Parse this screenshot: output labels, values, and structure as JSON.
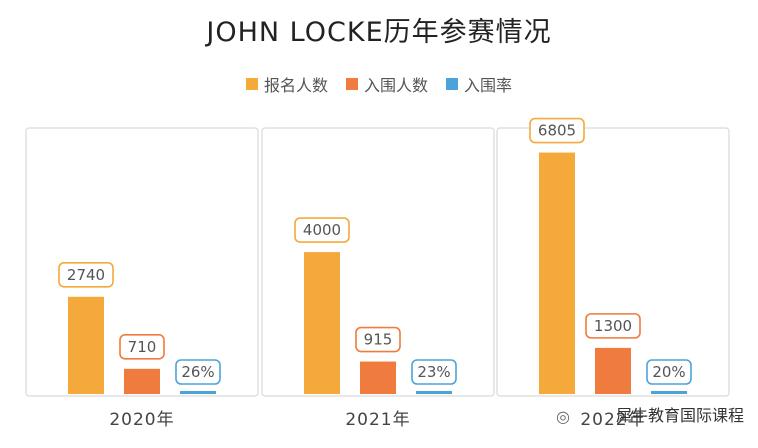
{
  "chart_data": {
    "type": "bar",
    "title": "JOHN LOCKE历年参赛情况",
    "categories": [
      "2020年",
      "2021年",
      "2022年"
    ],
    "series": [
      {
        "name": "报名人数",
        "values": [
          2740,
          4000,
          6805
        ],
        "labels": [
          "2740",
          "4000",
          "6805"
        ]
      },
      {
        "name": "入围人数",
        "values": [
          710,
          915,
          1300
        ],
        "labels": [
          "710",
          "915",
          "1300"
        ]
      },
      {
        "name": "入围率",
        "values": [
          26,
          23,
          20
        ],
        "labels": [
          "26%",
          "23%",
          "20%"
        ]
      }
    ],
    "ylim": [
      0,
      7300
    ],
    "grid": false,
    "legend_position": "top-center"
  },
  "colors": {
    "applicants": "#F5A93B",
    "finalists": "#EF7B3E",
    "rate": "#4BA3D9",
    "panel_border": "#D9D9D9",
    "label_text": "#555555"
  },
  "watermark": {
    "text": "犀牛教育国际课程",
    "icon": "wechat-icon"
  }
}
